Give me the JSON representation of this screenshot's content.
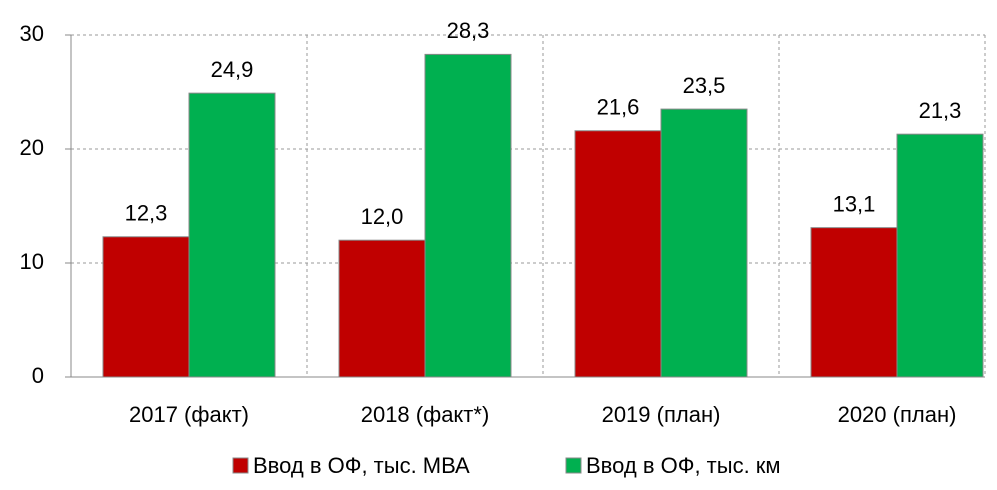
{
  "chart_data": {
    "type": "bar",
    "categories": [
      "2017 (факт)",
      "2018 (факт*)",
      "2019 (план)",
      "2020 (план)"
    ],
    "series": [
      {
        "name": "Ввод в ОФ, тыс. МВА",
        "color": "#c00000",
        "values": [
          12.3,
          12.0,
          21.6,
          13.1
        ],
        "value_labels": [
          "12,3",
          "12,0",
          "21,6",
          "13,1"
        ]
      },
      {
        "name": "Ввод в ОФ, тыс. км",
        "color": "#00b050",
        "values": [
          24.9,
          28.3,
          23.5,
          21.3
        ],
        "value_labels": [
          "24,9",
          "28,3",
          "23,5",
          "21,3"
        ]
      }
    ],
    "ylim": [
      0,
      30
    ],
    "yticks": [
      0,
      10,
      20,
      30
    ],
    "grid": true,
    "legend": "bottom"
  }
}
